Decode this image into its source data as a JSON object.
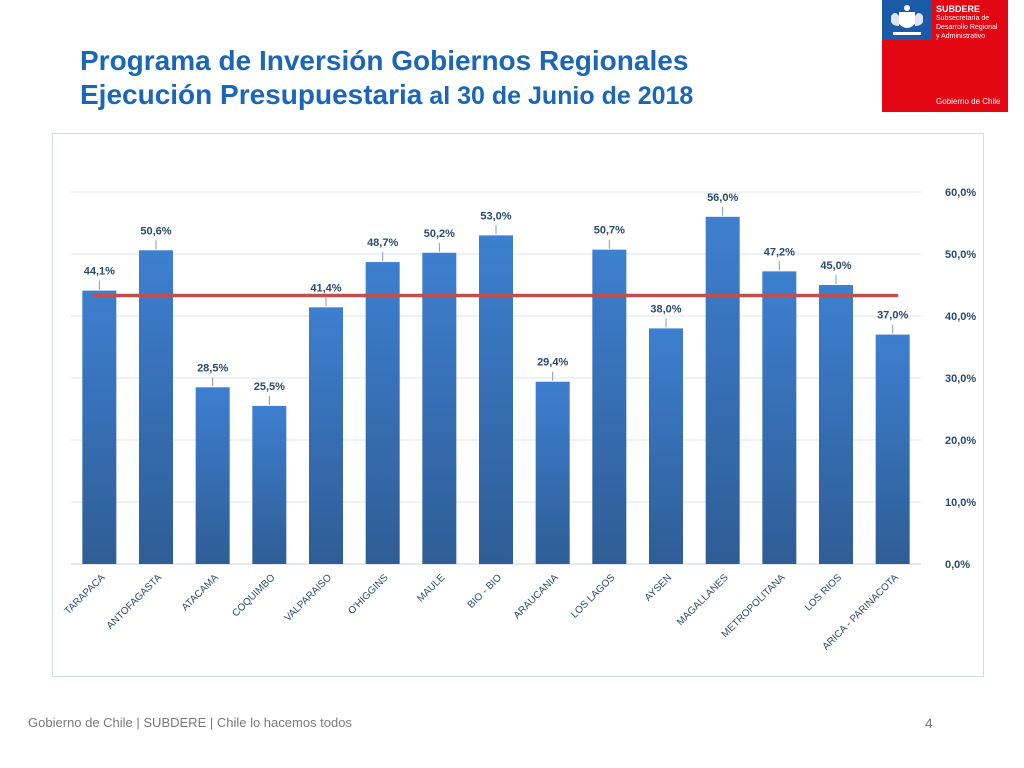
{
  "title": {
    "line1": "Programa de Inversión Gobiernos Regionales",
    "line2_bold": "Ejecución Presupuestaria",
    "line2_rest": " al 30 de Junio de 2018"
  },
  "logo": {
    "org": "SUBDERE",
    "subtitle_1": "Subsecretaría de",
    "subtitle_2": "Desarrollo Regional",
    "subtitle_3": "y Administrativo",
    "footer": "Gobierno de Chile",
    "colors": {
      "red": "#e30613",
      "blue": "#1b5aa6"
    }
  },
  "footer": {
    "text": "Gobierno de Chile | SUBDERE | Chile lo hacemos todos",
    "page": "4"
  },
  "chart_data": {
    "type": "bar",
    "title": "",
    "xlabel": "",
    "ylabel": "",
    "categories": [
      "TARAPACA",
      "ANTOFAGASTA",
      "ATACAMA",
      "COQUIMBO",
      "VALPARAISO",
      "O'HIGGINS",
      "MAULE",
      "BIO - BIO",
      "ARAUCANIA",
      "LOS LAGOS",
      "AYSEN",
      "MAGALLANES",
      "METROPOLITANA",
      "LOS RIOS",
      "ARICA - PARINACOTA"
    ],
    "values": [
      44.1,
      50.6,
      28.5,
      25.5,
      41.4,
      48.7,
      50.2,
      53.0,
      29.4,
      50.7,
      38.0,
      56.0,
      47.2,
      45.0,
      37.0
    ],
    "value_labels": [
      "44,1%",
      "50,6%",
      "28,5%",
      "25,5%",
      "41,4%",
      "48,7%",
      "50,2%",
      "53,0%",
      "29,4%",
      "50,7%",
      "38,0%",
      "56,0%",
      "47,2%",
      "45,0%",
      "37,0%"
    ],
    "ylim": [
      0,
      60
    ],
    "yticks": [
      0,
      10,
      20,
      30,
      40,
      50,
      60
    ],
    "ytick_labels": [
      "0,0%",
      "10,0%",
      "20,0%",
      "30,0%",
      "40,0%",
      "50,0%",
      "60,0%"
    ],
    "y_axis_side": "right",
    "grid": true,
    "reference_line": {
      "value": 43.3,
      "color": "#c0504d"
    },
    "bar_color_top": "#3d7fd0",
    "bar_color_bottom": "#2f5d95"
  }
}
